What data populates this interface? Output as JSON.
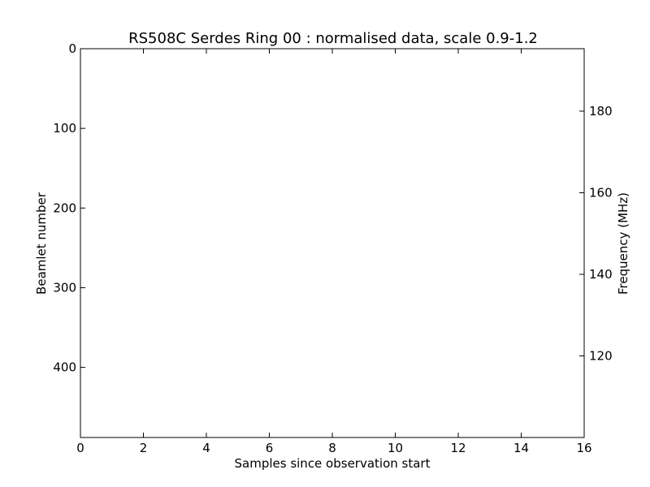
{
  "chart_data": {
    "type": "heatmap",
    "title": "RS508C Serdes Ring 00 : normalised data, scale 0.9-1.2",
    "xlabel": "Samples since observation start",
    "ylabel": "Beamlet number",
    "y2label": "Frequency (MHz)",
    "xlim": [
      0,
      16
    ],
    "ylim": [
      488,
      0
    ],
    "y2lim": [
      100,
      195.3125
    ],
    "x_ticks": [
      0,
      2,
      4,
      6,
      8,
      10,
      12,
      14,
      16
    ],
    "y_ticks": [
      0,
      100,
      200,
      300,
      400
    ],
    "y2_ticks": [
      120,
      140,
      160,
      180
    ],
    "y_inverted": true,
    "values": [],
    "grid": false,
    "legend": "none"
  }
}
